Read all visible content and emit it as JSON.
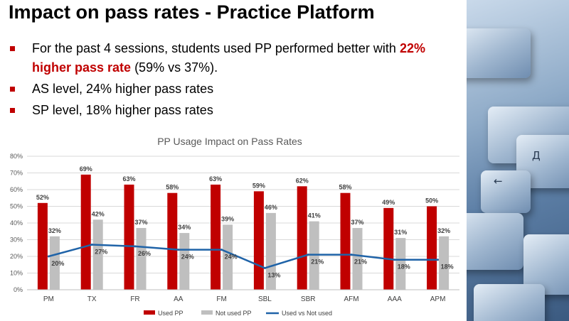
{
  "slide": {
    "title": "Impact on pass rates - Practice Platform",
    "bullets": [
      {
        "before": "For the past 4 sessions, students used PP performed better with ",
        "highlight": "22% higher pass rate",
        "after": " (59% vs 37%)."
      },
      {
        "text": "AS level, 24% higher pass rates"
      },
      {
        "text": "SP level, 18% higher pass rates"
      }
    ],
    "bullet_color": "#c00000",
    "photo_key_glyphs": [
      "←",
      "Д"
    ]
  },
  "chart_data": {
    "type": "bar",
    "title": "PP Usage Impact on Pass Rates",
    "xlabel": "",
    "ylabel": "",
    "categories": [
      "PM",
      "TX",
      "FR",
      "AA",
      "FM",
      "SBL",
      "SBR",
      "AFM",
      "AAA",
      "APM"
    ],
    "ylim": [
      0,
      80
    ],
    "yticks": [
      0,
      10,
      20,
      30,
      40,
      50,
      60,
      70,
      80
    ],
    "tick_suffix": "%",
    "grid": true,
    "legend_position": "bottom",
    "series": [
      {
        "name": "Used PP",
        "kind": "bar",
        "color": "#c00000",
        "values": [
          52,
          69,
          63,
          58,
          63,
          59,
          62,
          58,
          49,
          50
        ]
      },
      {
        "name": "Not used PP",
        "kind": "bar",
        "color": "#bfbfbf",
        "values": [
          32,
          42,
          37,
          34,
          39,
          46,
          41,
          37,
          31,
          32
        ]
      },
      {
        "name": "Used vs Not used",
        "kind": "line",
        "color": "#1f63a8",
        "values": [
          20,
          27,
          26,
          24,
          24,
          13,
          21,
          21,
          18,
          18
        ]
      }
    ]
  }
}
